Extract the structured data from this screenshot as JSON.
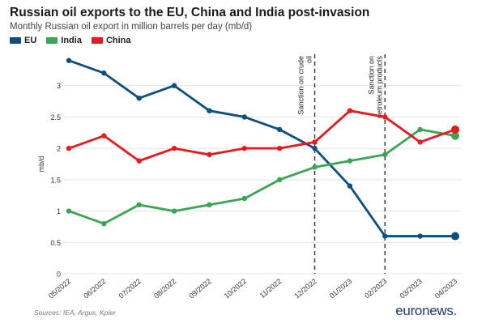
{
  "header": {
    "title": "Russian oil exports to the EU, China and India post-invasion",
    "subtitle": "Monthly Russian oil export in million barrels per day (mb/d)"
  },
  "chart_data": {
    "type": "line",
    "title": "Russian oil exports to the EU, China and India post-invasion",
    "subtitle": "Monthly Russian oil export in million barrels per day (mb/d)",
    "xlabel": "",
    "ylabel": "mb/d",
    "ylim": [
      0,
      3.5
    ],
    "yticks": [
      0,
      0.5,
      1,
      1.5,
      2,
      2.5,
      3
    ],
    "ytick_labels": [
      "0",
      "0.5",
      "1",
      "1.5",
      "2",
      "2.5",
      "3"
    ],
    "grid": true,
    "legend_position": "top-left",
    "categories": [
      "05/2022",
      "06/2022",
      "07/2022",
      "08/2022",
      "09/2022",
      "10/2022",
      "11/2022",
      "12/2022",
      "01/2023",
      "02/2023",
      "03/2023",
      "04/2023"
    ],
    "series": [
      {
        "name": "EU",
        "color": "#0d4f7c",
        "values": [
          3.4,
          3.2,
          2.8,
          3.0,
          2.6,
          2.5,
          2.3,
          2.0,
          1.4,
          0.6,
          0.6,
          0.6
        ]
      },
      {
        "name": "India",
        "color": "#3aa655",
        "values": [
          1.0,
          0.8,
          1.1,
          1.0,
          1.1,
          1.2,
          1.5,
          1.7,
          1.8,
          1.9,
          2.3,
          2.2
        ]
      },
      {
        "name": "China",
        "color": "#e8191f",
        "values": [
          2.0,
          2.2,
          1.8,
          2.0,
          1.9,
          2.0,
          2.0,
          2.1,
          2.6,
          2.5,
          2.1,
          2.3
        ]
      }
    ],
    "annotations": [
      {
        "label": "Sanction on crude oil",
        "category": "12/2022",
        "line1": "Sanction on crude",
        "line2": "oil"
      },
      {
        "label": "Sanction on petroleum products",
        "category": "02/2023",
        "line1": "Sanction on",
        "line2": "petroleum products"
      }
    ]
  },
  "footer": {
    "source": "Sources: IEA, Argus, Kpler",
    "brand": "euronews."
  }
}
